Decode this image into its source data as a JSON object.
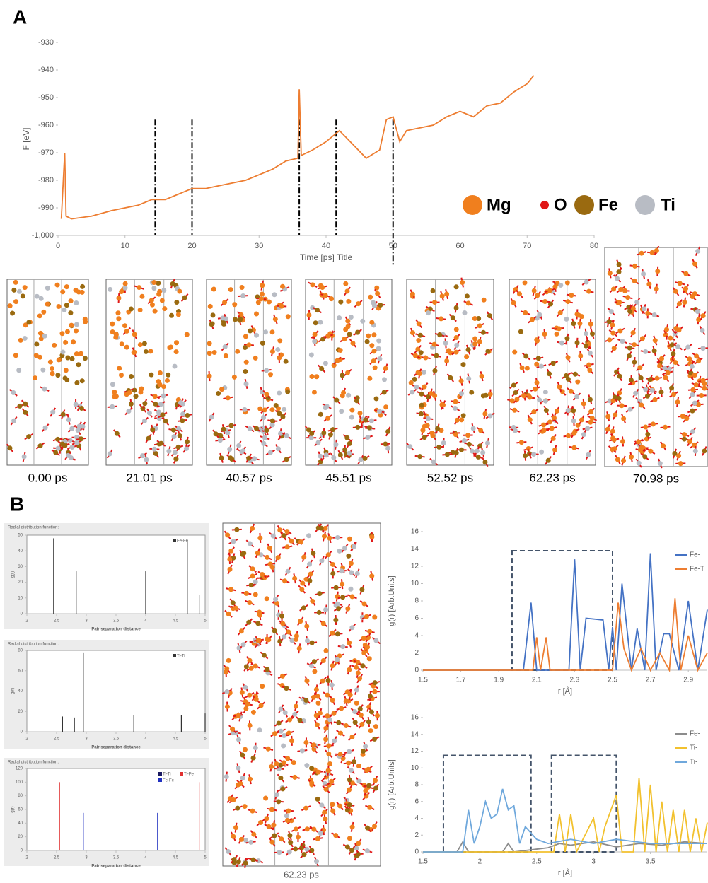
{
  "panels": [
    "A",
    "B"
  ],
  "atom_legend": [
    {
      "name": "Mg",
      "color": "#f07f1e"
    },
    {
      "name": "O",
      "color": "#e01818"
    },
    {
      "name": "Fe",
      "color": "#9a6a10"
    },
    {
      "name": "Ti",
      "color": "#b8bcc4"
    }
  ],
  "snapshots": [
    "0.00 ps",
    "21.01 ps",
    "40.57 ps",
    "45.51 ps",
    "52.52 ps",
    "62.23 ps",
    "70.98 ps"
  ],
  "big_snapshot": "62.23 ps",
  "chart_data": [
    {
      "type": "line",
      "x_label": "Time [ps] Title",
      "y_label": "F [eV]",
      "color": "#ed7d31",
      "x": [
        0.5,
        1,
        1.2,
        2,
        5,
        8,
        10,
        12,
        14,
        16,
        18,
        20,
        22,
        24,
        26,
        28,
        30,
        32,
        34,
        35.8,
        36,
        36.3,
        38,
        40,
        42,
        44,
        46,
        48,
        49,
        50,
        51,
        52,
        54,
        56,
        58,
        60,
        62,
        64,
        66,
        68,
        70,
        71
      ],
      "values": [
        -994,
        -970,
        -993,
        -994,
        -993,
        -991,
        -990,
        -989,
        -987,
        -987,
        -985,
        -983,
        -983,
        -982,
        -981,
        -980,
        -978,
        -976,
        -973,
        -972,
        -947,
        -971,
        -969,
        -966,
        -962,
        -967,
        -972,
        -969,
        -958,
        -957,
        -966,
        -962,
        -961,
        -960,
        -957,
        -955,
        -957,
        -953,
        -952,
        -948,
        -945,
        -942
      ],
      "markers": [
        14.5,
        20,
        36,
        41.5,
        50
      ],
      "xlim": [
        0,
        80
      ],
      "xticks": [
        0,
        10,
        20,
        30,
        40,
        50,
        60,
        70,
        80
      ],
      "ylim": [
        -1000,
        -930
      ],
      "yticks": [
        -930,
        -940,
        -950,
        -960,
        -970,
        -980,
        -990,
        {
          "value": -1000,
          "label": "-1,000"
        }
      ]
    },
    {
      "type": "stem",
      "title": "Radial distribution function:",
      "x_label": "Pair separation distance",
      "y_label": "g(r)",
      "series": [
        {
          "name": "Fe-Fe",
          "color": "#333333",
          "x": [
            2.45,
            2.83,
            4.0,
            4.7,
            4.9
          ],
          "values": [
            48,
            27,
            27,
            47,
            12
          ]
        }
      ],
      "xlim": [
        2,
        5
      ],
      "xticks": [
        2,
        2.5,
        3,
        3.5,
        4,
        4.5,
        5
      ],
      "ylim": [
        0,
        50
      ],
      "yticks": [
        0,
        10,
        20,
        30,
        40,
        50
      ]
    },
    {
      "type": "stem",
      "title": "Radial distribution function:",
      "x_label": "Pair separation distance",
      "y_label": "g(r)",
      "series": [
        {
          "name": "Ti-Ti",
          "color": "#333333",
          "x": [
            2.6,
            2.8,
            2.95,
            3.8,
            4.6,
            5.0
          ],
          "values": [
            15,
            14,
            78,
            16,
            16,
            18
          ]
        }
      ],
      "xlim": [
        2,
        5
      ],
      "xticks": [
        2,
        2.5,
        3,
        3.5,
        4,
        4.5,
        5
      ],
      "ylim": [
        0,
        80
      ],
      "yticks": [
        0,
        20,
        40,
        60,
        80
      ]
    },
    {
      "type": "stem",
      "title": "Radial distribution function:",
      "x_label": "Pair separation distance",
      "y_label": "g(r)",
      "series": [
        {
          "name": "Ti-Ti",
          "color": "#1a1a60",
          "x": [],
          "values": []
        },
        {
          "name": "Ti-Fe",
          "color": "#e03030",
          "x": [
            2.55,
            4.9
          ],
          "values": [
            100,
            100
          ]
        },
        {
          "name": "Fe-Fe",
          "color": "#2030c0",
          "x": [
            2.95,
            4.2
          ],
          "values": [
            55,
            55
          ]
        }
      ],
      "xlim": [
        2,
        5
      ],
      "xticks": [
        2,
        2.5,
        3,
        3.5,
        4,
        4.5,
        5
      ],
      "ylim": [
        0,
        120
      ],
      "yticks": [
        0,
        20,
        40,
        60,
        80,
        100,
        120
      ]
    },
    {
      "type": "line",
      "x_label": "r [Å]",
      "y_label": "g(r) [Arb.Units]",
      "series": [
        {
          "name": "Fe-",
          "color": "#4472c4",
          "x": [
            1.5,
            2.03,
            2.07,
            2.1,
            2.2,
            2.27,
            2.3,
            2.33,
            2.36,
            2.45,
            2.48,
            2.5,
            2.52,
            2.55,
            2.6,
            2.63,
            2.67,
            2.7,
            2.73,
            2.77,
            2.8,
            2.85,
            2.9,
            2.95,
            3.0
          ],
          "values": [
            0,
            0,
            7.8,
            0,
            0,
            0,
            12.8,
            0,
            6,
            5.8,
            0,
            5,
            0,
            10,
            0,
            4.8,
            0,
            13.5,
            0,
            4.2,
            4.2,
            0,
            8,
            0,
            7
          ]
        },
        {
          "name": "Fe-T",
          "color": "#ed7d31",
          "x": [
            1.5,
            2.08,
            2.1,
            2.12,
            2.15,
            2.17,
            2.2,
            2.5,
            2.53,
            2.56,
            2.6,
            2.65,
            2.7,
            2.75,
            2.8,
            2.83,
            2.86,
            2.9,
            2.95,
            3.0
          ],
          "values": [
            0,
            0,
            3.8,
            0,
            3.8,
            0,
            0,
            0,
            7.8,
            2.5,
            0,
            2.5,
            0,
            2,
            0,
            8.3,
            0,
            4,
            0,
            2
          ]
        }
      ],
      "boxes": [
        {
          "x": [
            1.97,
            2.5
          ],
          "y": [
            0,
            13.8
          ]
        }
      ],
      "xlim": [
        1.5,
        3.0
      ],
      "xticks": [
        1.5,
        1.7,
        1.9,
        2.1,
        2.3,
        2.5,
        2.7,
        2.9
      ],
      "ylim": [
        0,
        16
      ],
      "yticks": [
        0,
        2,
        4,
        6,
        8,
        10,
        12,
        14,
        16
      ]
    },
    {
      "type": "line",
      "x_label": "r [Å]",
      "y_label": "g(r) [Arb.Units]",
      "series": [
        {
          "name": "Fe-",
          "color": "#8c8c8c",
          "x": [
            1.5,
            1.8,
            1.85,
            1.9,
            2.2,
            2.25,
            2.3,
            2.6,
            2.7,
            2.8,
            3.0,
            3.2,
            3.4,
            3.6,
            3.8,
            4.0
          ],
          "values": [
            0,
            0,
            1.2,
            0,
            0,
            1,
            0,
            0.5,
            1,
            0.8,
            1.2,
            0.6,
            1,
            0.8,
            1.2,
            1
          ]
        },
        {
          "name": "Ti-",
          "color": "#f2c12e",
          "x": [
            1.5,
            2.5,
            2.65,
            2.7,
            2.75,
            2.8,
            2.85,
            3.0,
            3.05,
            3.1,
            3.2,
            3.25,
            3.35,
            3.4,
            3.45,
            3.5,
            3.55,
            3.6,
            3.65,
            3.7,
            3.75,
            3.8,
            3.85,
            3.9,
            3.95,
            4.0
          ],
          "values": [
            0,
            0,
            0,
            4.5,
            0,
            4.5,
            0,
            4,
            0,
            3,
            6.8,
            0,
            0,
            8.8,
            0,
            8,
            0,
            6,
            0,
            5,
            0,
            5,
            0,
            4,
            0,
            3.5
          ]
        },
        {
          "name": "Ti-",
          "color": "#6fa8dc",
          "x": [
            1.5,
            1.7,
            1.85,
            1.9,
            1.95,
            2.0,
            2.05,
            2.1,
            2.15,
            2.2,
            2.25,
            2.3,
            2.35,
            2.4,
            2.5,
            2.6,
            2.8,
            3.0,
            3.2,
            3.5,
            4.0
          ],
          "values": [
            0,
            0,
            0,
            5,
            1,
            3,
            6,
            4,
            4.5,
            7.5,
            5,
            5.5,
            1,
            3,
            1.5,
            1,
            1.5,
            1,
            1.5,
            1,
            1
          ]
        }
      ],
      "boxes": [
        {
          "x": [
            1.68,
            2.45
          ],
          "y": [
            0,
            11.5
          ]
        },
        {
          "x": [
            2.63,
            3.2
          ],
          "y": [
            0,
            11.5
          ]
        }
      ],
      "xlim": [
        1.5,
        4.0
      ],
      "xticks": [
        1.5,
        2,
        2.5,
        3,
        3.5
      ],
      "ylim": [
        0,
        16
      ],
      "yticks": [
        0,
        2,
        4,
        6,
        8,
        10,
        12,
        14,
        16
      ]
    }
  ]
}
